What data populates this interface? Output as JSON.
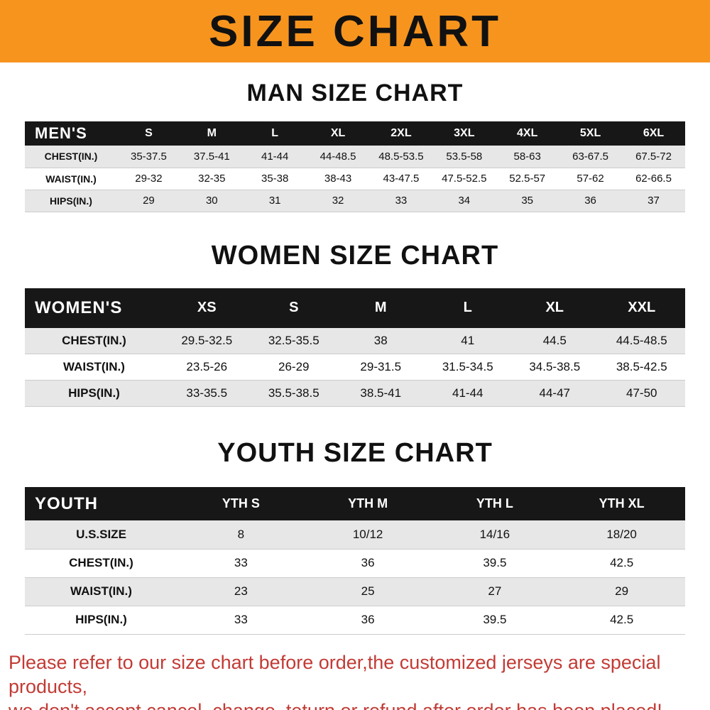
{
  "banner": {
    "title": "SIZE CHART",
    "bg": "#F7941E"
  },
  "sections": [
    {
      "id": "men",
      "title": "MAN SIZE CHART",
      "header": [
        "MEN'S",
        "S",
        "M",
        "L",
        "XL",
        "2XL",
        "3XL",
        "4XL",
        "5XL",
        "6XL"
      ],
      "rows": [
        {
          "label": "CHEST(IN.)",
          "values": [
            "35-37.5",
            "37.5-41",
            "41-44",
            "44-48.5",
            "48.5-53.5",
            "53.5-58",
            "58-63",
            "63-67.5",
            "67.5-72"
          ]
        },
        {
          "label": "WAIST(IN.)",
          "values": [
            "29-32",
            "32-35",
            "35-38",
            "38-43",
            "43-47.5",
            "47.5-52.5",
            "52.5-57",
            "57-62",
            "62-66.5"
          ]
        },
        {
          "label": "HIPS(IN.)",
          "values": [
            "29",
            "30",
            "31",
            "32",
            "33",
            "34",
            "35",
            "36",
            "37"
          ]
        }
      ]
    },
    {
      "id": "women",
      "title": "WOMEN SIZE CHART",
      "header": [
        "WOMEN'S",
        "XS",
        "S",
        "M",
        "L",
        "XL",
        "XXL"
      ],
      "rows": [
        {
          "label": "CHEST(IN.)",
          "values": [
            "29.5-32.5",
            "32.5-35.5",
            "38",
            "41",
            "44.5",
            "44.5-48.5"
          ]
        },
        {
          "label": "WAIST(IN.)",
          "values": [
            "23.5-26",
            "26-29",
            "29-31.5",
            "31.5-34.5",
            "34.5-38.5",
            "38.5-42.5"
          ]
        },
        {
          "label": "HIPS(IN.)",
          "values": [
            "33-35.5",
            "35.5-38.5",
            "38.5-41",
            "41-44",
            "44-47",
            "47-50"
          ]
        }
      ]
    },
    {
      "id": "youth",
      "title": "YOUTH SIZE CHART",
      "header": [
        "YOUTH",
        "YTH S",
        "YTH M",
        "YTH L",
        "YTH XL"
      ],
      "rows": [
        {
          "label": "U.S.SIZE",
          "values": [
            "8",
            "10/12",
            "14/16",
            "18/20"
          ]
        },
        {
          "label": "CHEST(IN.)",
          "values": [
            "33",
            "36",
            "39.5",
            "42.5"
          ]
        },
        {
          "label": "WAIST(IN.)",
          "values": [
            "23",
            "25",
            "27",
            "29"
          ]
        },
        {
          "label": "HIPS(IN.)",
          "values": [
            "33",
            "36",
            "39.5",
            "42.5"
          ]
        }
      ]
    }
  ],
  "footer": {
    "line1": "Please refer to our size chart before order,the customized jerseys are special products,",
    "line2": "we don't accept cancel, change, teturn or refund after order has been placed!",
    "color": "#C23B35"
  }
}
